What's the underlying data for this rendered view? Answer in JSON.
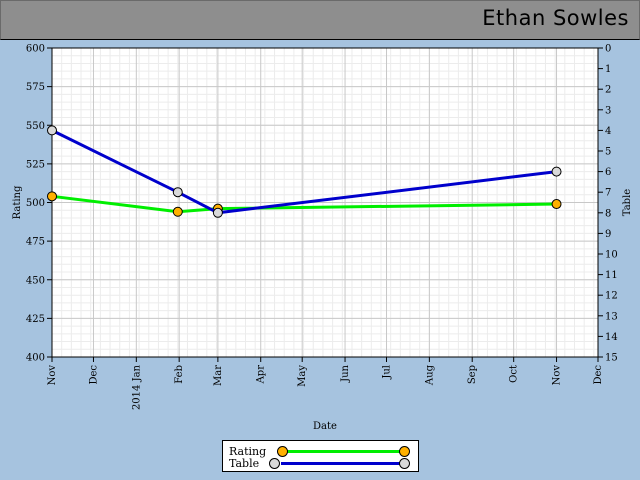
{
  "header": {
    "player_name": "Ethan Sowles"
  },
  "chart_data": {
    "type": "line",
    "xlabel": "Date",
    "x_ticks": [
      "Nov",
      "Dec",
      "2014 Jan",
      "Feb",
      "Mar",
      "Apr",
      "May",
      "Jun",
      "Jul",
      "Aug",
      "Sep",
      "Oct",
      "Nov",
      "Dec"
    ],
    "left_axis": {
      "label": "Rating",
      "range": [
        400,
        600
      ],
      "ticks": [
        400,
        425,
        450,
        475,
        500,
        525,
        550,
        575,
        600
      ]
    },
    "right_axis": {
      "label": "Table",
      "range": [
        0,
        15
      ],
      "inverted": true,
      "ticks": [
        0,
        1,
        2,
        3,
        4,
        5,
        6,
        7,
        8,
        9,
        10,
        11,
        12,
        13,
        14,
        15
      ]
    },
    "grid": true,
    "legend_position": "bottom-center",
    "series": [
      {
        "name": "Rating",
        "axis": "left",
        "line_color": "#00ee00",
        "marker_color": "#ffb000",
        "points": [
          {
            "x": "2013-11-01",
            "y": 504
          },
          {
            "x": "2014-01-31",
            "y": 494
          },
          {
            "x": "2014-03-01",
            "y": 496
          },
          {
            "x": "2014-11-01",
            "y": 499
          }
        ]
      },
      {
        "name": "Table",
        "axis": "right",
        "line_color": "#0000cc",
        "marker_color": "#d9d9d9",
        "points": [
          {
            "x": "2013-11-01",
            "y": 4
          },
          {
            "x": "2014-01-31",
            "y": 7
          },
          {
            "x": "2014-03-01",
            "y": 8
          },
          {
            "x": "2014-11-01",
            "y": 6
          }
        ]
      }
    ]
  }
}
